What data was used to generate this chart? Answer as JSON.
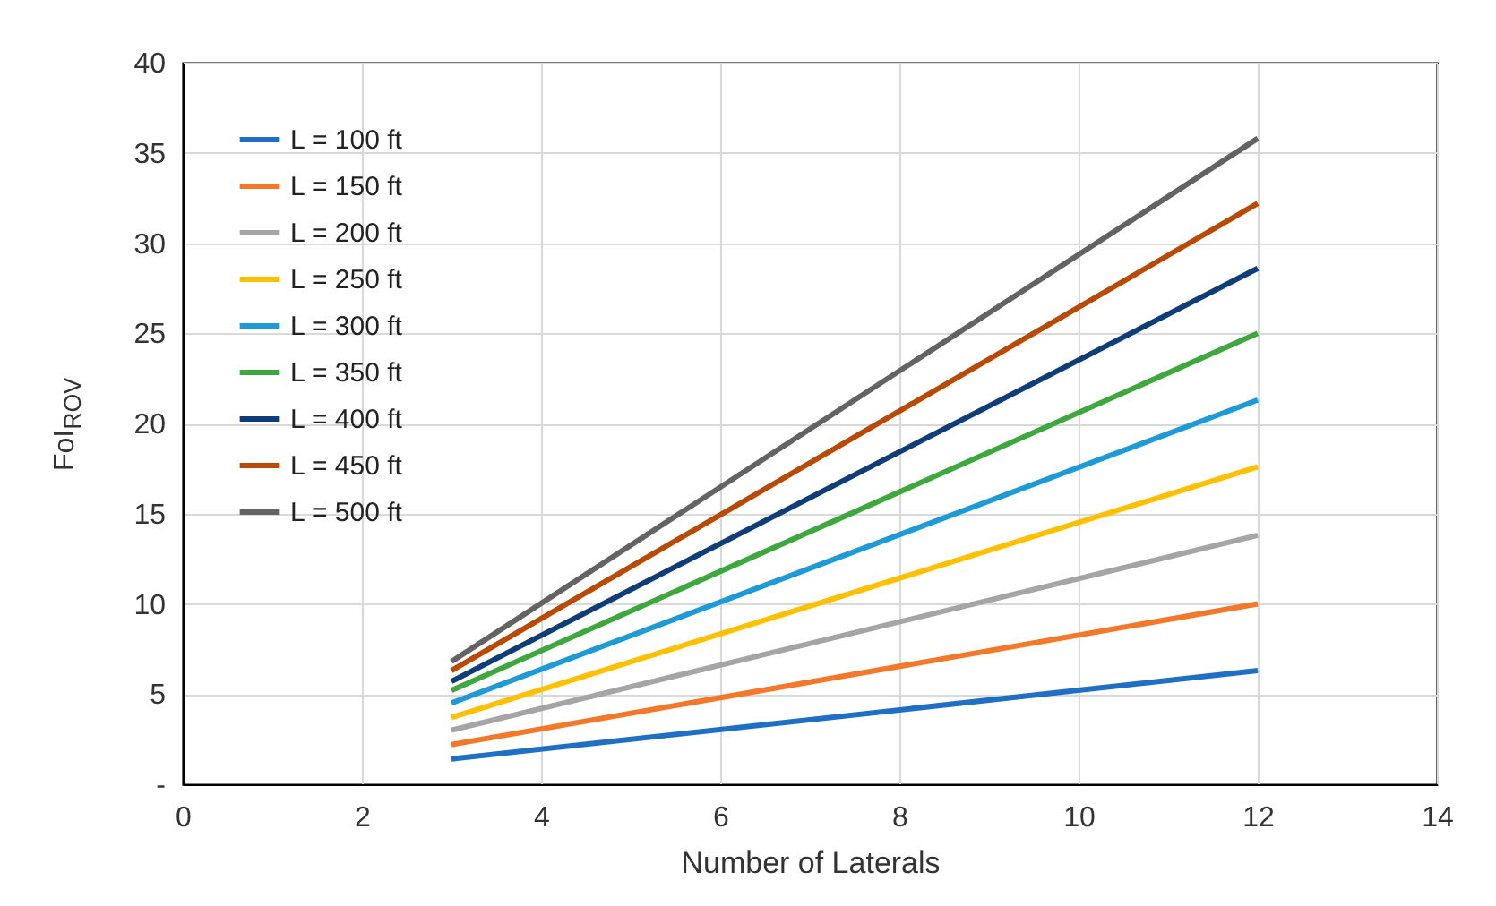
{
  "chart_data": {
    "type": "line",
    "xlabel": "Number of Laterals",
    "ylabel": "FoI$_{ROV}$",
    "x": [
      3,
      12
    ],
    "series": [
      {
        "name": "L = 100 ft",
        "color": "#1f6fc5",
        "values": [
          1.4,
          6.3
        ]
      },
      {
        "name": "L = 150 ft",
        "color": "#f4782a",
        "values": [
          2.2,
          10
        ]
      },
      {
        "name": "L = 200 ft",
        "color": "#a5a5a5",
        "values": [
          3,
          13.8
        ]
      },
      {
        "name": "L = 250 ft",
        "color": "#ffc000",
        "values": [
          3.7,
          17.6
        ]
      },
      {
        "name": "L = 300 ft",
        "color": "#1e9ad6",
        "values": [
          4.5,
          21.3
        ]
      },
      {
        "name": "L = 350 ft",
        "color": "#3ea83e",
        "values": [
          5.2,
          25
        ]
      },
      {
        "name": "L = 400 ft",
        "color": "#0e3d77",
        "values": [
          5.7,
          28.6
        ]
      },
      {
        "name": "L = 450 ft",
        "color": "#b84a06",
        "values": [
          6.3,
          32.2
        ]
      },
      {
        "name": "L = 500 ft",
        "color": "#636363",
        "values": [
          6.8,
          35.8
        ]
      }
    ],
    "xlim": [
      0,
      14
    ],
    "xticks": [
      0,
      2,
      4,
      6,
      8,
      10,
      12,
      14
    ],
    "ylim": [
      0,
      40
    ],
    "yticks": [
      {
        "value": 0,
        "label": "-"
      },
      5,
      10,
      15,
      20,
      25,
      30,
      35,
      40
    ],
    "grid": true,
    "legend": "top left",
    "marker": "none",
    "line_style": "solid"
  }
}
